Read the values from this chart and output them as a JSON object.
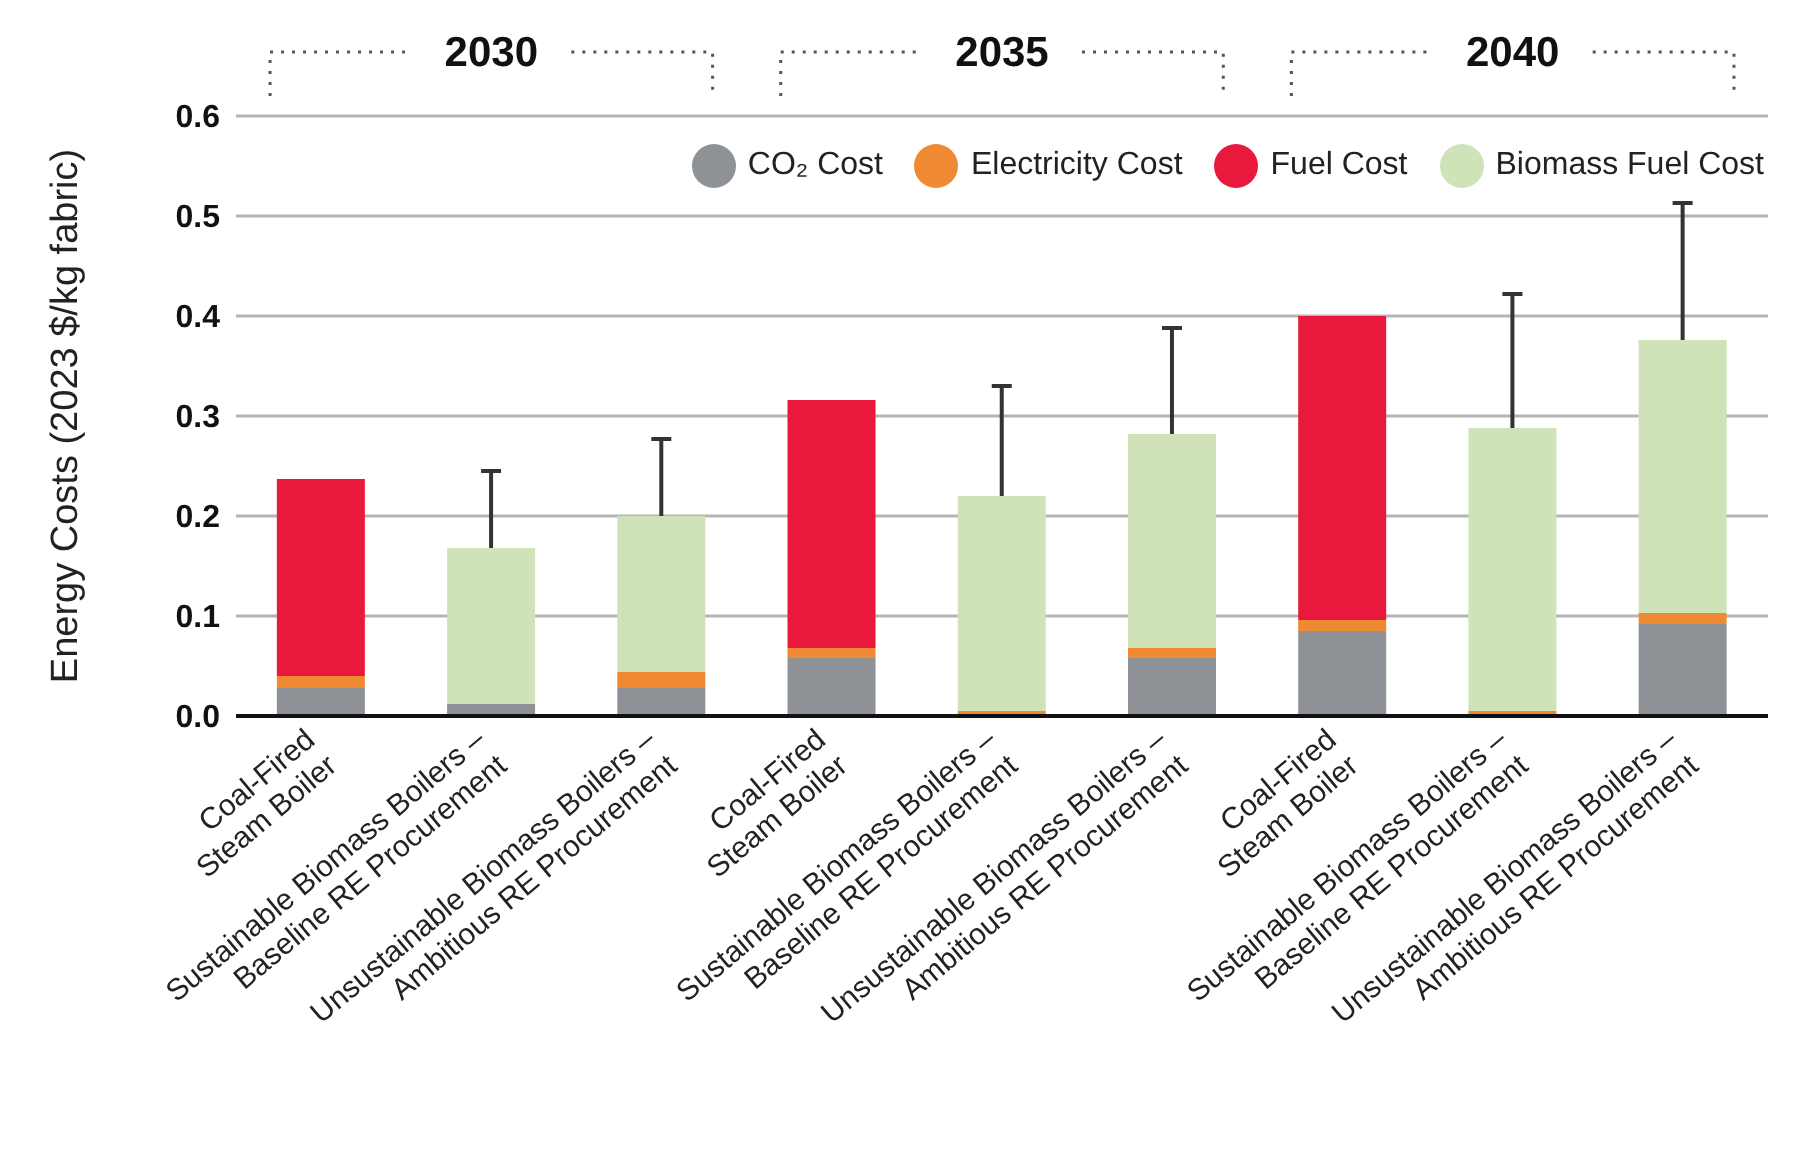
{
  "chart_data": {
    "type": "bar",
    "stacked": true,
    "categories": [
      "Coal-Fired\nSteam Boiler",
      "Sustainable Biomass Boilers –\nBaseline RE Procurement",
      "Unsustainable Biomass Boilers –\nAmbitious RE Procurement",
      "Coal-Fired\nSteam Boiler",
      "Sustainable Biomass Boilers –\nBaseline RE Procurement",
      "Unsustainable Biomass Boilers –\nAmbitious RE Procurement",
      "Coal-Fired\nSteam Boiler",
      "Sustainable Biomass Boilers –\nBaseline RE Procurement",
      "Unsustainable Biomass Boilers –\nAmbitious RE Procurement"
    ],
    "series": [
      {
        "name": "CO₂ Cost",
        "color": "#8e9196",
        "values": [
          0.028,
          0.012,
          0.028,
          0.058,
          0,
          0.058,
          0.085,
          0,
          0.092
        ]
      },
      {
        "name": "Electricity Cost",
        "color": "#f08a32",
        "values": [
          0.012,
          0,
          0.016,
          0.01,
          0.005,
          0.01,
          0.011,
          0.005,
          0.011
        ]
      },
      {
        "name": "Fuel Cost",
        "color": "#e8193c",
        "values": [
          0.197,
          0,
          0,
          0.248,
          0,
          0,
          0.304,
          0,
          0
        ]
      },
      {
        "name": "Biomass Fuel Cost",
        "color": "#cfe2b8",
        "values": [
          0,
          0.156,
          0.156,
          0,
          0.215,
          0.214,
          0,
          0.283,
          0.273
        ],
        "errors": [
          null,
          [
            0.168,
            0.245
          ],
          [
            0.2,
            0.277
          ],
          null,
          [
            0.22,
            0.33
          ],
          [
            0.282,
            0.388
          ],
          null,
          [
            0.288,
            0.422
          ],
          [
            0.376,
            0.513
          ]
        ]
      }
    ],
    "ylabel": "Energy Costs (2023 $/kg fabric)",
    "ylim": [
      0,
      0.6
    ],
    "yticks": [
      {
        "value": 0,
        "label": "0.0"
      },
      0.1,
      0.2,
      0.3,
      0.4,
      0.5,
      0.6
    ],
    "grid": "y",
    "legend": "top right",
    "annotations": [
      "2030",
      "2035",
      "2040"
    ]
  }
}
